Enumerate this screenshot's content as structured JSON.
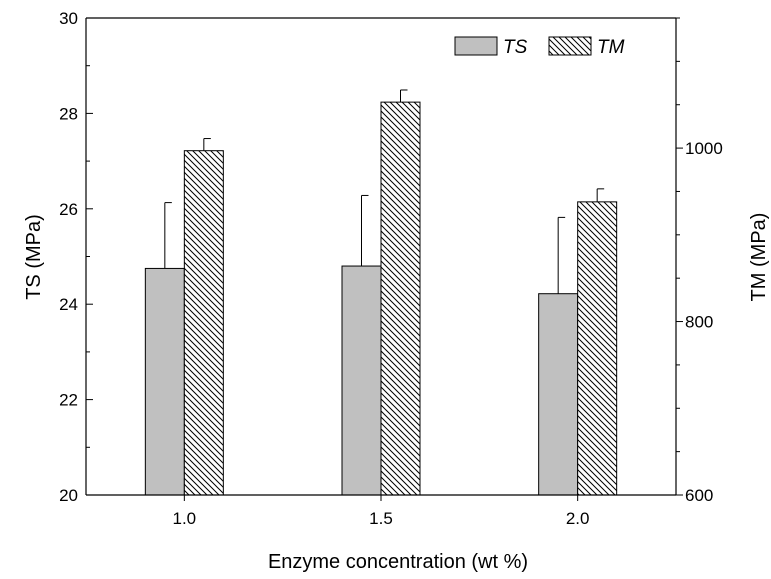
{
  "chart_data": {
    "type": "bar",
    "categories": [
      "1.0",
      "1.5",
      "2.0"
    ],
    "xlabel": "Enzyme concentration (wt %)",
    "ylabel": "TS (MPa)",
    "y2label": "TM (MPa)",
    "ylim": [
      20,
      30
    ],
    "yticks": [
      "20",
      "22",
      "24",
      "26",
      "28",
      "30"
    ],
    "y2lim": [
      600,
      1150
    ],
    "y2ticks": [
      "600",
      "800",
      "1000"
    ],
    "series": [
      {
        "name": "TS",
        "axis": "left",
        "values": [
          24.75,
          24.8,
          24.22
        ],
        "errors": [
          1.38,
          1.48,
          1.6
        ],
        "fill": "#c0c0c0",
        "pattern": "solid"
      },
      {
        "name": "TM",
        "axis": "right",
        "values": [
          997,
          1053,
          938
        ],
        "errors": [
          14,
          14,
          15
        ],
        "fill": "#ffffff",
        "pattern": "diagonal-hatch"
      }
    ],
    "grid": false,
    "legend_position": "top-right"
  }
}
